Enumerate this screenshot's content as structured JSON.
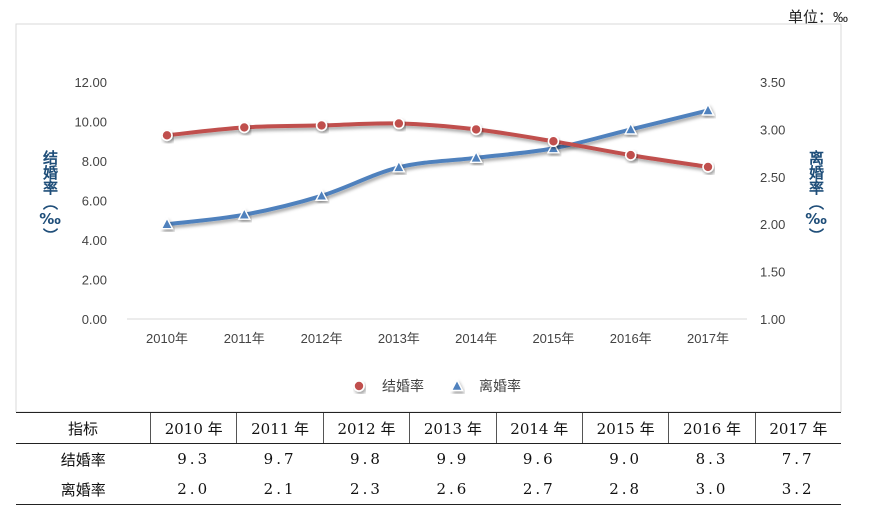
{
  "unit_label": "单位：‰",
  "chart_data": {
    "type": "line",
    "categories": [
      "2010年",
      "2011年",
      "2012年",
      "2013年",
      "2014年",
      "2015年",
      "2016年",
      "2017年"
    ],
    "series": [
      {
        "name": "结婚率",
        "axis": "left",
        "color": "#c0504d",
        "marker": "circle",
        "values": [
          9.3,
          9.7,
          9.8,
          9.9,
          9.6,
          9.0,
          8.3,
          7.7
        ]
      },
      {
        "name": "离婚率",
        "axis": "right",
        "color": "#4f81bd",
        "marker": "triangle",
        "values": [
          2.0,
          2.1,
          2.3,
          2.6,
          2.7,
          2.8,
          3.0,
          3.2
        ]
      }
    ],
    "y_left": {
      "label": "结婚率（‰）",
      "range": [
        0,
        12
      ],
      "ticks": [
        "0.00",
        "2.00",
        "4.00",
        "6.00",
        "8.00",
        "10.00",
        "12.00"
      ]
    },
    "y_right": {
      "label": "离婚率（‰）",
      "range": [
        1,
        3.5
      ],
      "ticks": [
        "1.00",
        "1.50",
        "2.00",
        "2.50",
        "3.00",
        "3.50"
      ]
    },
    "legend_position": "bottom",
    "grid": false
  },
  "table": {
    "header": [
      "指标",
      "2010 年",
      "2011 年",
      "2012 年",
      "2013 年",
      "2014 年",
      "2015 年",
      "2016 年",
      "2017 年"
    ],
    "rows": [
      {
        "label": "结婚率",
        "values": [
          "9.3",
          "9.7",
          "9.8",
          "9.9",
          "9.6",
          "9.0",
          "8.3",
          "7.7"
        ]
      },
      {
        "label": "离婚率",
        "values": [
          "2.0",
          "2.1",
          "2.3",
          "2.6",
          "2.7",
          "2.8",
          "3.0",
          "3.2"
        ]
      }
    ]
  }
}
